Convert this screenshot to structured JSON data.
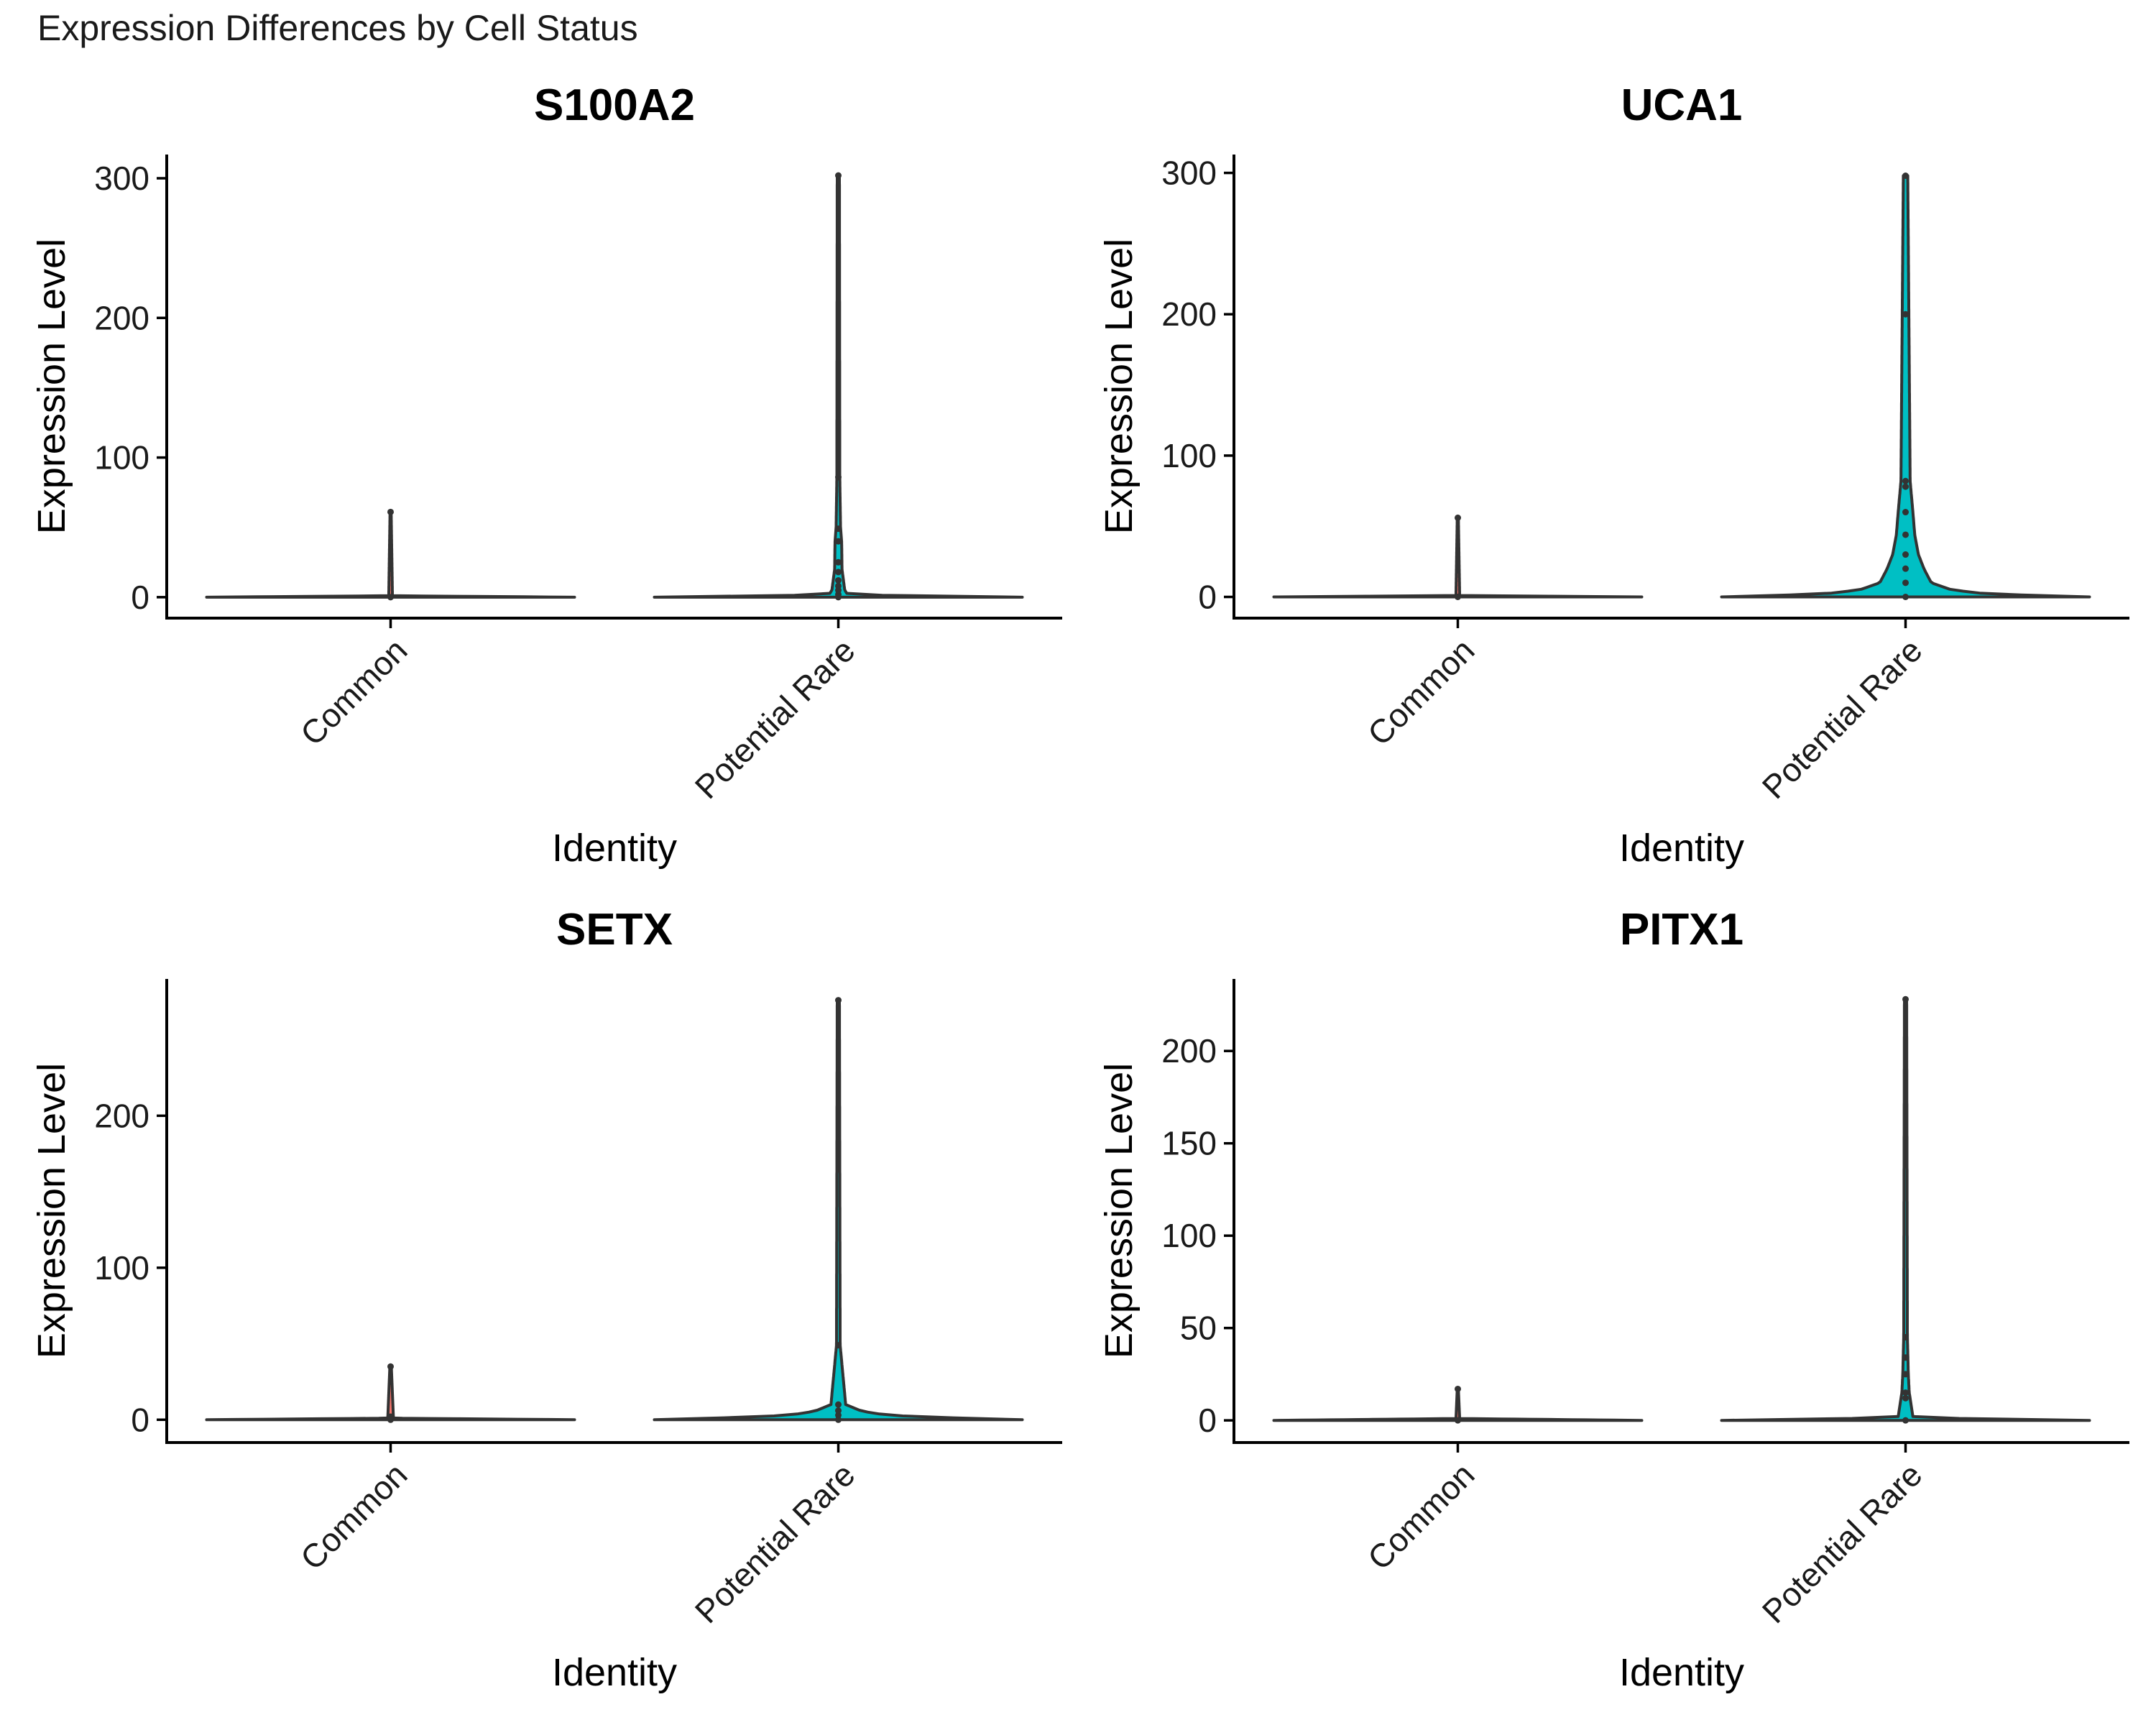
{
  "page_title": "Expression Differences by Cell Status",
  "colors": {
    "common_fill": "#F8766D",
    "rare_fill": "#00BFC4",
    "outline": "#333333",
    "axis": "#000000",
    "text": "#1a1a1a"
  },
  "chart_data": [
    {
      "type": "violin",
      "title": "S100A2",
      "xlabel": "Identity",
      "ylabel": "Expression Level",
      "categories": [
        "Common",
        "Potential Rare"
      ],
      "ylim": [
        -15,
        317
      ],
      "yticks": [
        0,
        100,
        200,
        300
      ],
      "series": [
        {
          "category": "Common",
          "max": 61,
          "points": [
            0,
            61
          ],
          "density": [
            [
              0,
              1.0
            ],
            [
              1,
              0.01
            ],
            [
              61,
              0.003
            ]
          ]
        },
        {
          "category": "Potential Rare",
          "max": 302,
          "points": [
            0,
            2,
            5,
            8,
            12,
            18,
            25,
            40,
            49,
            86,
            302
          ],
          "density": [
            [
              0,
              1.0
            ],
            [
              1,
              0.35
            ],
            [
              2,
              0.05
            ],
            [
              5,
              0.035
            ],
            [
              10,
              0.03
            ],
            [
              20,
              0.02
            ],
            [
              40,
              0.018
            ],
            [
              50,
              0.012
            ],
            [
              86,
              0.008
            ],
            [
              302,
              0.006
            ]
          ]
        }
      ]
    },
    {
      "type": "violin",
      "title": "UCA1",
      "xlabel": "Identity",
      "ylabel": "Expression Level",
      "categories": [
        "Common",
        "Potential Rare"
      ],
      "ylim": [
        -15,
        313
      ],
      "yticks": [
        0,
        100,
        200,
        300
      ],
      "series": [
        {
          "category": "Common",
          "max": 56,
          "points": [
            0,
            56
          ],
          "density": [
            [
              0,
              1.0
            ],
            [
              1,
              0.01
            ],
            [
              56,
              0.003
            ]
          ]
        },
        {
          "category": "Potential Rare",
          "max": 298,
          "points": [
            0,
            10,
            20,
            30,
            44,
            60,
            78,
            82,
            200,
            298
          ],
          "density": [
            [
              0,
              1.0
            ],
            [
              2,
              0.45
            ],
            [
              5,
              0.25
            ],
            [
              10,
              0.14
            ],
            [
              20,
              0.1
            ],
            [
              30,
              0.07
            ],
            [
              44,
              0.05
            ],
            [
              60,
              0.04
            ],
            [
              82,
              0.025
            ],
            [
              200,
              0.018
            ],
            [
              298,
              0.012
            ]
          ]
        }
      ]
    },
    {
      "type": "violin",
      "title": "SETX",
      "xlabel": "Identity",
      "ylabel": "Expression Level",
      "categories": [
        "Common",
        "Potential Rare"
      ],
      "ylim": [
        -15,
        290
      ],
      "yticks": [
        0,
        100,
        200
      ],
      "series": [
        {
          "category": "Common",
          "max": 35,
          "points": [
            0,
            2,
            35
          ],
          "density": [
            [
              0,
              1.0
            ],
            [
              1,
              0.02
            ],
            [
              2,
              0.015
            ],
            [
              35,
              0.004
            ]
          ]
        },
        {
          "category": "Potential Rare",
          "max": 276,
          "points": [
            0,
            3,
            6,
            10,
            49,
            276
          ],
          "density": [
            [
              0,
              1.0
            ],
            [
              2,
              0.4
            ],
            [
              4,
              0.2
            ],
            [
              6,
              0.12
            ],
            [
              10,
              0.04
            ],
            [
              49,
              0.01
            ],
            [
              276,
              0.006
            ]
          ]
        }
      ]
    },
    {
      "type": "violin",
      "title": "PITX1",
      "xlabel": "Identity",
      "ylabel": "Expression Level",
      "categories": [
        "Common",
        "Potential Rare"
      ],
      "ylim": [
        -12,
        239
      ],
      "yticks": [
        0,
        50,
        100,
        150,
        200
      ],
      "series": [
        {
          "category": "Common",
          "max": 17,
          "points": [
            0,
            17
          ],
          "density": [
            [
              0,
              1.0
            ],
            [
              1,
              0.01
            ],
            [
              17,
              0.003
            ]
          ]
        },
        {
          "category": "Potential Rare",
          "max": 228,
          "points": [
            0,
            12,
            15,
            25,
            34,
            45,
            228
          ],
          "density": [
            [
              0,
              1.0
            ],
            [
              1,
              0.3
            ],
            [
              2,
              0.04
            ],
            [
              12,
              0.025
            ],
            [
              15,
              0.02
            ],
            [
              25,
              0.015
            ],
            [
              45,
              0.01
            ],
            [
              228,
              0.006
            ]
          ]
        }
      ]
    }
  ]
}
